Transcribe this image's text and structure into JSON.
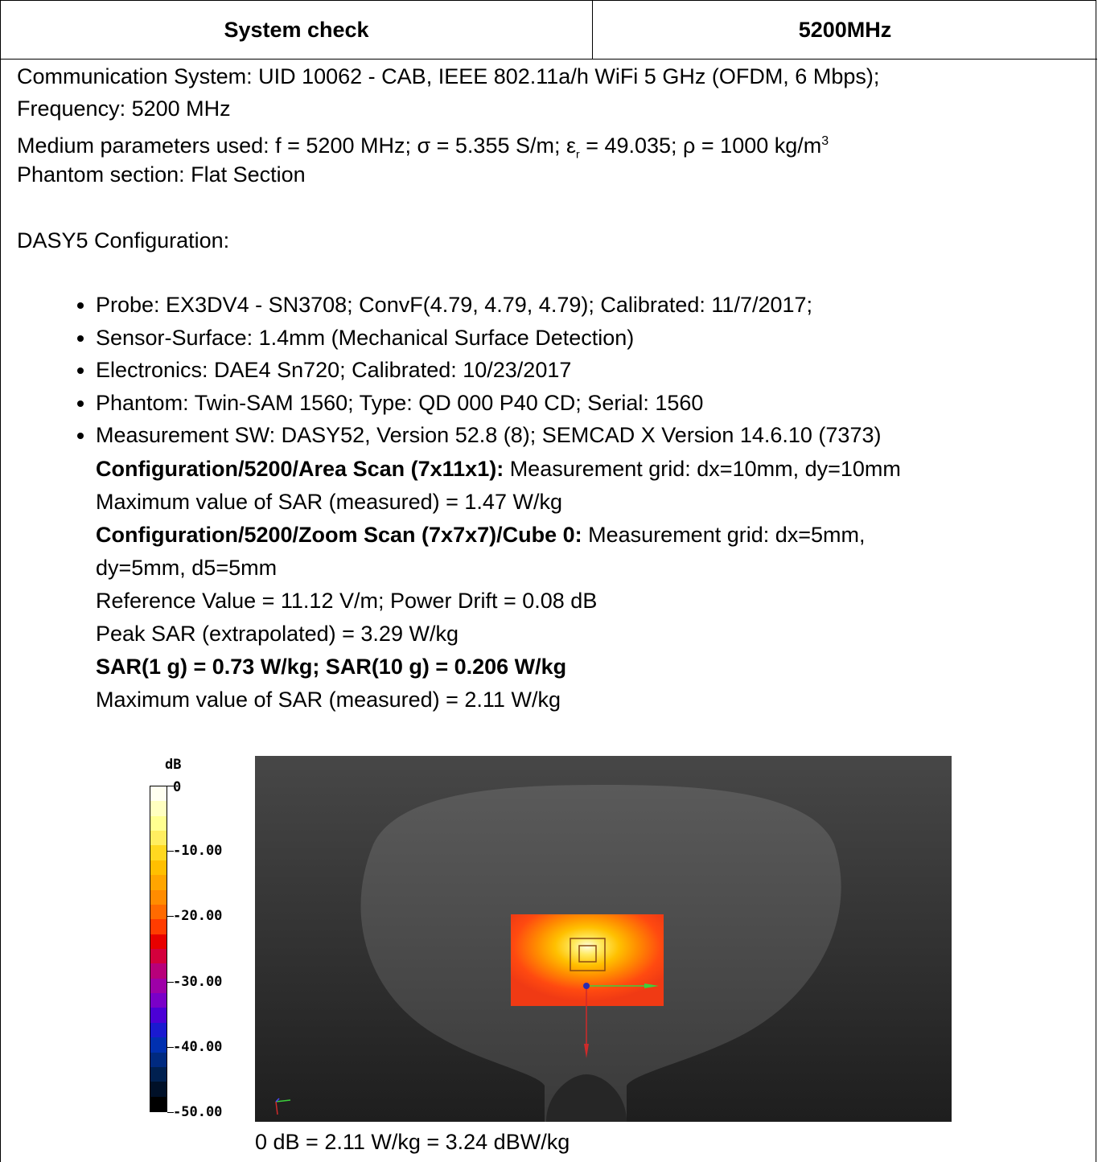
{
  "header": {
    "left": "System check",
    "right": "5200MHz"
  },
  "body": {
    "comm_system": "Communication System: UID 10062 - CAB, IEEE 802.11a/h WiFi 5 GHz (OFDM, 6 Mbps);",
    "frequency": "Frequency: 5200 MHz",
    "medium_prefix": "Medium parameters used: f = 5200 MHz; σ = 5.355 S/m; ε",
    "medium_sub": "r",
    "medium_mid": " = 49.035; ρ = 1000 kg/m",
    "medium_sup": "3",
    "phantom_section": "Phantom section: Flat Section",
    "dasy_config": "DASY5 Configuration:",
    "items": [
      "Probe: EX3DV4 - SN3708; ConvF(4.79, 4.79, 4.79); Calibrated: 11/7/2017;",
      "Sensor-Surface: 1.4mm (Mechanical Surface Detection)",
      "Electronics: DAE4 Sn720; Calibrated: 10/23/2017",
      "Phantom: Twin-SAM 1560; Type: QD 000 P40 CD; Serial: 1560",
      "Measurement SW: DASY52, Version 52.8 (8); SEMCAD X Version 14.6.10 (7373)"
    ],
    "area_scan_bold": "Configuration/5200/Area Scan (7x11x1):",
    "area_scan_rest": " Measurement grid: dx=10mm, dy=10mm",
    "area_max": "Maximum value of SAR (measured) = 1.47 W/kg",
    "zoom_scan_bold": "Configuration/5200/Zoom Scan (7x7x7)/Cube 0:",
    "zoom_scan_rest": " Measurement grid: dx=5mm,",
    "zoom_grid_cont": "dy=5mm, d5=5mm",
    "reference": "Reference Value = 11.12 V/m; Power Drift = 0.08 dB",
    "peak": "Peak SAR (extrapolated) = 3.29 W/kg",
    "sar_result": "SAR(1 g) = 0.73 W/kg; SAR(10 g) = 0.206 W/kg",
    "zoom_max": "Maximum value of SAR (measured) = 2.11 W/kg"
  },
  "colorbar": {
    "unit": "dB",
    "ticks": [
      "0",
      "-10.00",
      "-20.00",
      "-30.00",
      "-40.00",
      "-50.00"
    ],
    "colors": [
      "#fffff0",
      "#ffffc0",
      "#ffff90",
      "#ffee60",
      "#ffd820",
      "#ffbf00",
      "#ffa500",
      "#ff8c00",
      "#ff6a00",
      "#ff3c00",
      "#e80000",
      "#d4003c",
      "#b8007a",
      "#9e00a8",
      "#7a00c8",
      "#4b00d6",
      "#1a1ad0",
      "#0030b0",
      "#002a80",
      "#002050",
      "#001028",
      "#000000"
    ]
  },
  "caption": "0 dB = 2.11 W/kg = 3.24 dBW/kg"
}
